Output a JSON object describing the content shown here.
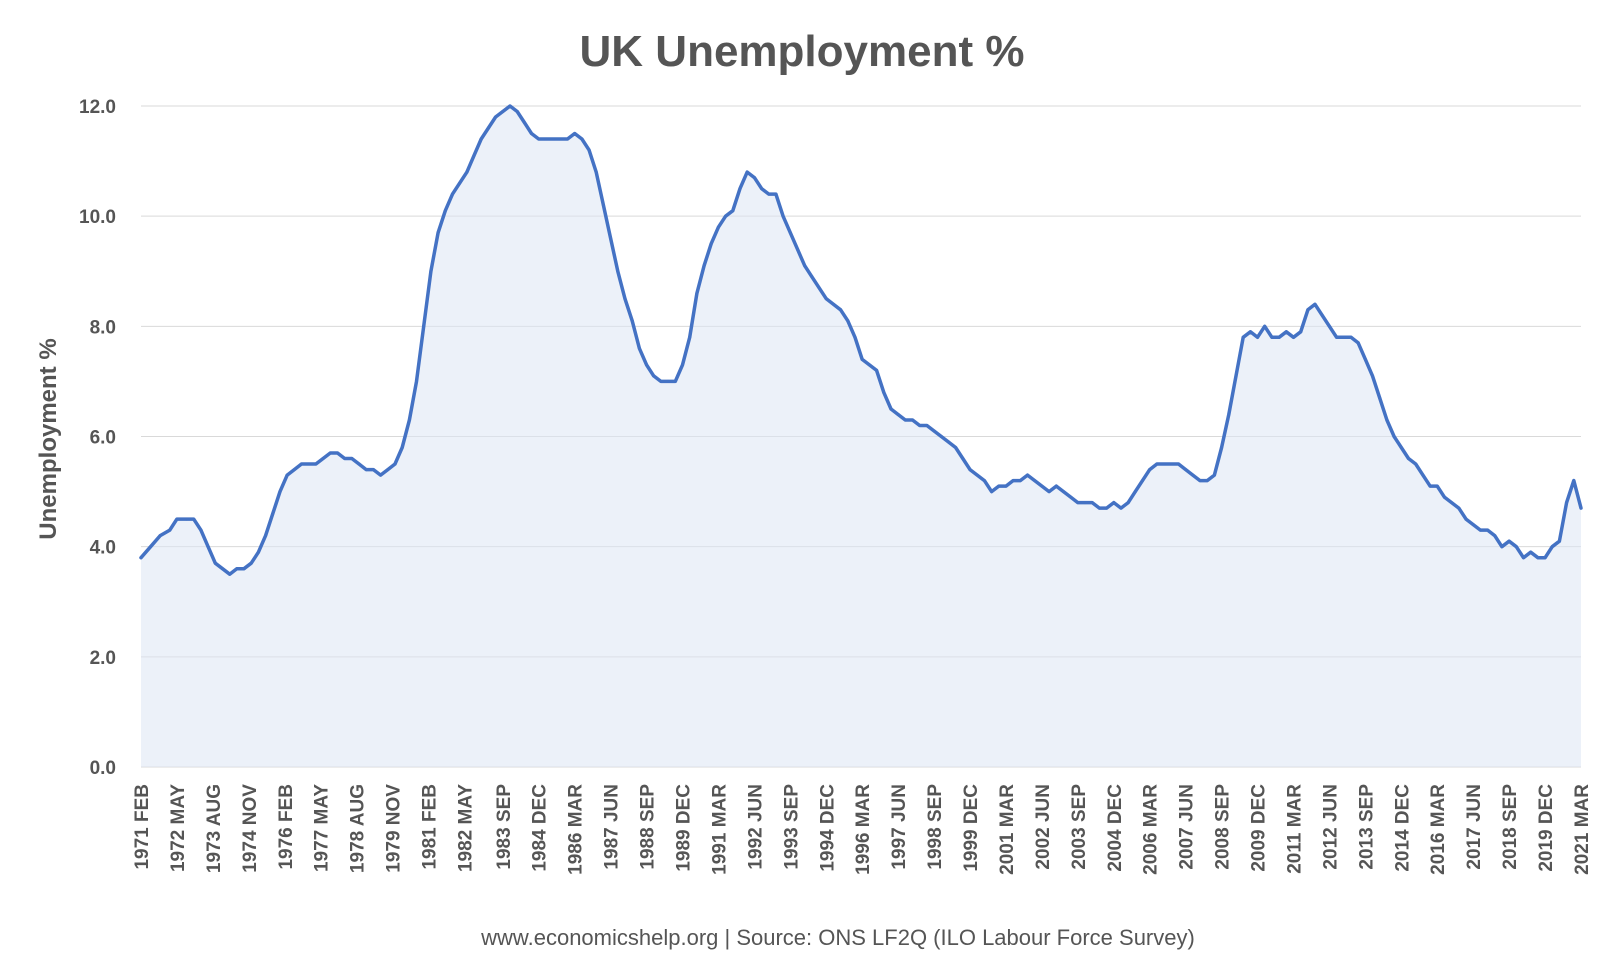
{
  "colors": {
    "line": "#4472C4",
    "area": "#dce6f4",
    "grid": "#d9d9d9",
    "text": "#555555"
  },
  "chart_data": {
    "type": "line",
    "title": "UK Unemployment %",
    "subtitle": "",
    "xlabel": "",
    "ylabel": "Unemployment %",
    "ylim": [
      0,
      12
    ],
    "y_ticks": [
      "0.0",
      "2.0",
      "4.0",
      "6.0",
      "8.0",
      "10.0",
      "12.0"
    ],
    "grid": true,
    "legend": "none",
    "source_note": "www.economicshelp.org  | Source:  ONS LF2Q (ILO Labour Force Survey)",
    "x_range": [
      "1971 FEB",
      "2021 MAR"
    ],
    "x_tick_labels": [
      "1971 FEB",
      "1972 MAY",
      "1973 AUG",
      "1974 NOV",
      "1976 FEB",
      "1977 MAY",
      "1978 AUG",
      "1979 NOV",
      "1981 FEB",
      "1982 MAY",
      "1983 SEP",
      "1984 DEC",
      "1986 MAR",
      "1987 JUN",
      "1988 SEP",
      "1989 DEC",
      "1991 MAR",
      "1992 JUN",
      "1993 SEP",
      "1994 DEC",
      "1996 MAR",
      "1997 JUN",
      "1998 SEP",
      "1999 DEC",
      "2001 MAR",
      "2002 JUN",
      "2003 SEP",
      "2004 DEC",
      "2006 MAR",
      "2007 JUN",
      "2008 SEP",
      "2009 DEC",
      "2011 MAR",
      "2012 JUN",
      "2013 SEP",
      "2014 DEC",
      "2016 MAR",
      "2017 JUN",
      "2018 SEP",
      "2019 DEC",
      "2021 MAR"
    ],
    "series": [
      {
        "points": [
          [
            "1971 FEB",
            3.8
          ],
          [
            "1971 JUN",
            4.0
          ],
          [
            "1971 OCT",
            4.2
          ],
          [
            "1972 FEB",
            4.3
          ],
          [
            "1972 MAY",
            4.5
          ],
          [
            "1972 SEP",
            4.5
          ],
          [
            "1972 DEC",
            4.5
          ],
          [
            "1973 MAR",
            4.3
          ],
          [
            "1973 JUN",
            4.0
          ],
          [
            "1973 SEP",
            3.7
          ],
          [
            "1973 DEC",
            3.6
          ],
          [
            "1974 MAR",
            3.5
          ],
          [
            "1974 JUN",
            3.6
          ],
          [
            "1974 SEP",
            3.6
          ],
          [
            "1974 DEC",
            3.7
          ],
          [
            "1975 MAR",
            3.9
          ],
          [
            "1975 JUN",
            4.2
          ],
          [
            "1975 SEP",
            4.6
          ],
          [
            "1975 DEC",
            5.0
          ],
          [
            "1976 MAR",
            5.3
          ],
          [
            "1976 JUN",
            5.4
          ],
          [
            "1976 SEP",
            5.5
          ],
          [
            "1976 DEC",
            5.5
          ],
          [
            "1977 MAR",
            5.5
          ],
          [
            "1977 JUN",
            5.6
          ],
          [
            "1977 SEP",
            5.7
          ],
          [
            "1977 DEC",
            5.7
          ],
          [
            "1978 MAR",
            5.6
          ],
          [
            "1978 JUN",
            5.6
          ],
          [
            "1978 SEP",
            5.5
          ],
          [
            "1978 DEC",
            5.4
          ],
          [
            "1979 MAR",
            5.4
          ],
          [
            "1979 JUN",
            5.3
          ],
          [
            "1979 SEP",
            5.4
          ],
          [
            "1979 DEC",
            5.5
          ],
          [
            "1980 MAR",
            5.8
          ],
          [
            "1980 JUN",
            6.3
          ],
          [
            "1980 SEP",
            7.0
          ],
          [
            "1980 DEC",
            8.0
          ],
          [
            "1981 MAR",
            9.0
          ],
          [
            "1981 JUN",
            9.7
          ],
          [
            "1981 SEP",
            10.1
          ],
          [
            "1981 DEC",
            10.4
          ],
          [
            "1982 MAR",
            10.6
          ],
          [
            "1982 JUN",
            10.8
          ],
          [
            "1982 SEP",
            11.1
          ],
          [
            "1982 DEC",
            11.4
          ],
          [
            "1983 MAR",
            11.6
          ],
          [
            "1983 JUN",
            11.8
          ],
          [
            "1983 SEP",
            11.9
          ],
          [
            "1983 DEC",
            12.0
          ],
          [
            "1984 MAR",
            11.9
          ],
          [
            "1984 JUN",
            11.7
          ],
          [
            "1984 SEP",
            11.5
          ],
          [
            "1984 DEC",
            11.4
          ],
          [
            "1985 MAR",
            11.4
          ],
          [
            "1985 JUN",
            11.4
          ],
          [
            "1985 SEP",
            11.4
          ],
          [
            "1985 DEC",
            11.4
          ],
          [
            "1986 MAR",
            11.5
          ],
          [
            "1986 JUN",
            11.4
          ],
          [
            "1986 SEP",
            11.2
          ],
          [
            "1986 DEC",
            10.8
          ],
          [
            "1987 MAR",
            10.2
          ],
          [
            "1987 JUN",
            9.6
          ],
          [
            "1987 SEP",
            9.0
          ],
          [
            "1987 DEC",
            8.5
          ],
          [
            "1988 MAR",
            8.1
          ],
          [
            "1988 JUN",
            7.6
          ],
          [
            "1988 SEP",
            7.3
          ],
          [
            "1988 DEC",
            7.1
          ],
          [
            "1989 MAR",
            7.0
          ],
          [
            "1989 JUN",
            7.0
          ],
          [
            "1989 SEP",
            7.0
          ],
          [
            "1989 DEC",
            7.3
          ],
          [
            "1990 MAR",
            7.8
          ],
          [
            "1990 JUN",
            8.6
          ],
          [
            "1990 SEP",
            9.1
          ],
          [
            "1990 DEC",
            9.5
          ],
          [
            "1991 MAR",
            9.8
          ],
          [
            "1991 JUN",
            10.0
          ],
          [
            "1991 SEP",
            10.1
          ],
          [
            "1991 DEC",
            10.5
          ],
          [
            "1992 MAR",
            10.8
          ],
          [
            "1992 JUN",
            10.7
          ],
          [
            "1992 SEP",
            10.5
          ],
          [
            "1992 DEC",
            10.4
          ],
          [
            "1993 MAR",
            10.4
          ],
          [
            "1993 JUN",
            10.0
          ],
          [
            "1993 SEP",
            9.7
          ],
          [
            "1993 DEC",
            9.4
          ],
          [
            "1994 MAR",
            9.1
          ],
          [
            "1994 JUN",
            8.9
          ],
          [
            "1994 SEP",
            8.7
          ],
          [
            "1994 DEC",
            8.5
          ],
          [
            "1995 MAR",
            8.4
          ],
          [
            "1995 JUN",
            8.3
          ],
          [
            "1995 SEP",
            8.1
          ],
          [
            "1995 DEC",
            7.8
          ],
          [
            "1996 MAR",
            7.4
          ],
          [
            "1996 JUN",
            7.3
          ],
          [
            "1996 SEP",
            7.2
          ],
          [
            "1996 DEC",
            6.8
          ],
          [
            "1997 MAR",
            6.5
          ],
          [
            "1997 JUN",
            6.4
          ],
          [
            "1997 SEP",
            6.3
          ],
          [
            "1997 DEC",
            6.3
          ],
          [
            "1998 MAR",
            6.2
          ],
          [
            "1998 JUN",
            6.2
          ],
          [
            "1998 SEP",
            6.1
          ],
          [
            "1998 DEC",
            6.0
          ],
          [
            "1999 MAR",
            5.9
          ],
          [
            "1999 JUN",
            5.8
          ],
          [
            "1999 SEP",
            5.6
          ],
          [
            "1999 DEC",
            5.4
          ],
          [
            "2000 MAR",
            5.3
          ],
          [
            "2000 JUN",
            5.2
          ],
          [
            "2000 SEP",
            5.0
          ],
          [
            "2000 DEC",
            5.1
          ],
          [
            "2001 MAR",
            5.1
          ],
          [
            "2001 JUN",
            5.2
          ],
          [
            "2001 SEP",
            5.2
          ],
          [
            "2001 DEC",
            5.3
          ],
          [
            "2002 MAR",
            5.2
          ],
          [
            "2002 JUN",
            5.1
          ],
          [
            "2002 SEP",
            5.0
          ],
          [
            "2002 DEC",
            5.1
          ],
          [
            "2003 MAR",
            5.0
          ],
          [
            "2003 JUN",
            4.9
          ],
          [
            "2003 SEP",
            4.8
          ],
          [
            "2003 DEC",
            4.8
          ],
          [
            "2004 MAR",
            4.8
          ],
          [
            "2004 JUN",
            4.7
          ],
          [
            "2004 SEP",
            4.7
          ],
          [
            "2004 DEC",
            4.8
          ],
          [
            "2005 MAR",
            4.7
          ],
          [
            "2005 JUN",
            4.8
          ],
          [
            "2005 SEP",
            5.0
          ],
          [
            "2005 DEC",
            5.2
          ],
          [
            "2006 MAR",
            5.4
          ],
          [
            "2006 JUN",
            5.5
          ],
          [
            "2006 SEP",
            5.5
          ],
          [
            "2006 DEC",
            5.5
          ],
          [
            "2007 MAR",
            5.5
          ],
          [
            "2007 JUN",
            5.4
          ],
          [
            "2007 SEP",
            5.3
          ],
          [
            "2007 DEC",
            5.2
          ],
          [
            "2008 MAR",
            5.2
          ],
          [
            "2008 JUN",
            5.3
          ],
          [
            "2008 SEP",
            5.8
          ],
          [
            "2008 DEC",
            6.4
          ],
          [
            "2009 MAR",
            7.1
          ],
          [
            "2009 JUN",
            7.8
          ],
          [
            "2009 SEP",
            7.9
          ],
          [
            "2009 DEC",
            7.8
          ],
          [
            "2010 MAR",
            8.0
          ],
          [
            "2010 JUN",
            7.8
          ],
          [
            "2010 SEP",
            7.8
          ],
          [
            "2010 DEC",
            7.9
          ],
          [
            "2011 MAR",
            7.8
          ],
          [
            "2011 JUN",
            7.9
          ],
          [
            "2011 SEP",
            8.3
          ],
          [
            "2011 DEC",
            8.4
          ],
          [
            "2012 MAR",
            8.2
          ],
          [
            "2012 JUN",
            8.0
          ],
          [
            "2012 SEP",
            7.8
          ],
          [
            "2012 DEC",
            7.8
          ],
          [
            "2013 MAR",
            7.8
          ],
          [
            "2013 JUN",
            7.7
          ],
          [
            "2013 SEP",
            7.4
          ],
          [
            "2013 DEC",
            7.1
          ],
          [
            "2014 MAR",
            6.7
          ],
          [
            "2014 JUN",
            6.3
          ],
          [
            "2014 SEP",
            6.0
          ],
          [
            "2014 DEC",
            5.8
          ],
          [
            "2015 MAR",
            5.6
          ],
          [
            "2015 JUN",
            5.5
          ],
          [
            "2015 SEP",
            5.3
          ],
          [
            "2015 DEC",
            5.1
          ],
          [
            "2016 MAR",
            5.1
          ],
          [
            "2016 JUN",
            4.9
          ],
          [
            "2016 SEP",
            4.8
          ],
          [
            "2016 DEC",
            4.7
          ],
          [
            "2017 MAR",
            4.5
          ],
          [
            "2017 JUN",
            4.4
          ],
          [
            "2017 SEP",
            4.3
          ],
          [
            "2017 DEC",
            4.3
          ],
          [
            "2018 MAR",
            4.2
          ],
          [
            "2018 JUN",
            4.0
          ],
          [
            "2018 SEP",
            4.1
          ],
          [
            "2018 DEC",
            4.0
          ],
          [
            "2019 MAR",
            3.8
          ],
          [
            "2019 JUN",
            3.9
          ],
          [
            "2019 SEP",
            3.8
          ],
          [
            "2019 DEC",
            3.8
          ],
          [
            "2020 MAR",
            4.0
          ],
          [
            "2020 JUN",
            4.1
          ],
          [
            "2020 SEP",
            4.8
          ],
          [
            "2020 DEC",
            5.2
          ],
          [
            "2021 MAR",
            4.7
          ]
        ]
      }
    ]
  }
}
